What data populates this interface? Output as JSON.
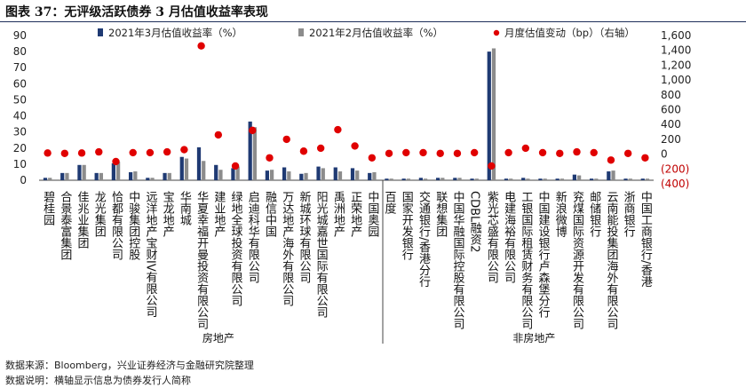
{
  "title": "图表 37：无评级活跃债券 3 月估值收益率表现",
  "footer": {
    "source": "数据来源：Bloomberg，兴业证券经济与金融研究院整理",
    "note": "数据说明：横轴显示信息为债券发行人简称"
  },
  "colors": {
    "march": "#1f3a73",
    "feb": "#8c8c8c",
    "change": "#e00000",
    "neg_tick": "#c00000"
  },
  "chart_data": {
    "type": "bar+scatter",
    "series": [
      {
        "name": "2021年3月估值收益率（%）",
        "type": "bar",
        "axis": "left"
      },
      {
        "name": "2021年2月估值收益率（%）",
        "type": "bar",
        "axis": "left"
      },
      {
        "name": "月度估值变动（bp）（右轴）",
        "type": "scatter",
        "axis": "right"
      }
    ],
    "left_axis": {
      "min": 0,
      "max": 90,
      "ticks": [
        "0",
        "10",
        "20",
        "30",
        "40",
        "50",
        "60",
        "70",
        "80",
        "90"
      ]
    },
    "right_axis": {
      "min": -400,
      "max": 1600,
      "ticks": [
        "(400)",
        "(200)",
        "0",
        "200",
        "400",
        "600",
        "800",
        "1,000",
        "1,200",
        "1,400",
        "1,600"
      ]
    },
    "groups": [
      {
        "label": "房地产",
        "start": 0,
        "end": 20
      },
      {
        "label": "非房地产",
        "start": 21,
        "end": 36
      }
    ],
    "categories": [
      "碧桂园",
      "合景泰富集团",
      "佳兆业集团",
      "龙光集团",
      "恰都有限公司",
      "中骏集团控股",
      "远洋地产宝财IV有限公司",
      "宝龙地产",
      "华南城",
      "华夏幸福开曼投资有限公司",
      "建业地产",
      "绿地全球投资有限公司",
      "启迪科华有限公司",
      "融信中国",
      "万达地产海外有限公司",
      "新城环球有限公司",
      "阳光城嘉世国际有限公司",
      "禹洲地产",
      "正荣地产",
      "中国奥园",
      "百度",
      "国家开发银行",
      "交通银行/香港分行",
      "联想集团",
      "中国华融国际控股有限公司",
      "CDBL融资2",
      "紫光芯盛有限公司",
      "电建海裕有限公司",
      "工银国际租赁财务有限公司",
      "中国建设银行卢森堡分行",
      "新浪微博",
      "兖煤国际资源开发有限公司",
      "邮储银行",
      "云南能投集团海外有限公司",
      "浙商银行",
      "中国工商银行/香港"
    ],
    "march_yield": [
      1.5,
      4.5,
      9.5,
      4.5,
      10.5,
      5.0,
      1.5,
      4.5,
      14.5,
      20.5,
      9.5,
      7.5,
      36.5,
      6.0,
      8.0,
      4.0,
      8.5,
      8.0,
      7.5,
      4.5,
      1.0,
      1.0,
      1.5,
      1.5,
      1.5,
      1.0,
      80.0,
      1.0,
      1.5,
      1.0,
      1.0,
      3.5,
      1.0,
      5.5,
      1.0,
      1.0
    ],
    "feb_yield": [
      1.5,
      4.5,
      9.5,
      4.5,
      11.5,
      5.5,
      1.5,
      4.5,
      13.5,
      12.0,
      6.5,
      8.5,
      33.0,
      6.5,
      5.5,
      4.5,
      7.5,
      5.5,
      6.0,
      5.0,
      1.0,
      1.0,
      1.0,
      1.5,
      1.5,
      1.0,
      82.0,
      1.0,
      1.0,
      1.0,
      1.0,
      3.0,
      1.0,
      6.0,
      1.0,
      1.0
    ],
    "monthly_change_bp": [
      15,
      10,
      15,
      30,
      -100,
      20,
      20,
      30,
      60,
      1460,
      260,
      -160,
      320,
      -50,
      200,
      40,
      80,
      330,
      110,
      -50,
      10,
      20,
      20,
      10,
      10,
      20,
      -160,
      20,
      80,
      20,
      10,
      30,
      20,
      -80,
      10,
      -50
    ]
  }
}
